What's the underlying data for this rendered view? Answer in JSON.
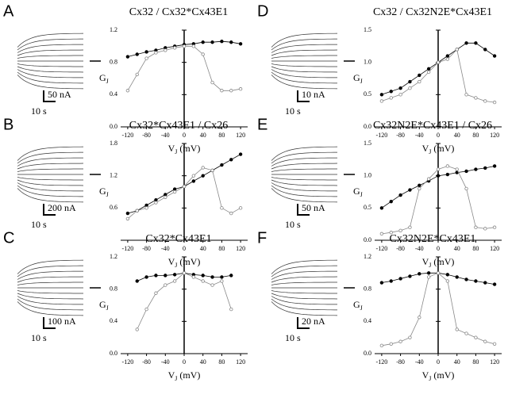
{
  "chart_data": [
    {
      "panel": "A",
      "title": "Cx32 / Cx32*Cx43E1",
      "type": "line",
      "current_scale": "50 nA",
      "time_scale": "10 s",
      "y_label": "G",
      "y_label_sub": "J",
      "x_label": "V",
      "x_label_sub": "J",
      "x_label_unit": " (mV)",
      "xlim": [
        -135,
        135
      ],
      "ylim": [
        0,
        1.2
      ],
      "xticks": [
        -120,
        -80,
        -40,
        0,
        40,
        80,
        120
      ],
      "yticks": [
        {
          "value": 0,
          "label": "0.0"
        },
        0.4,
        0.8,
        1.2
      ],
      "x": [
        -120,
        -100,
        -80,
        -60,
        -40,
        -20,
        0,
        20,
        40,
        60,
        80,
        100,
        120
      ],
      "series": [
        {
          "color": "#000000",
          "marker": "filled",
          "values": [
            0.87,
            0.9,
            0.93,
            0.95,
            0.98,
            1.0,
            1.02,
            1.03,
            1.05,
            1.05,
            1.06,
            1.05,
            1.03
          ]
        },
        {
          "color": "#888888",
          "marker": "open",
          "values": [
            0.45,
            0.65,
            0.85,
            0.92,
            0.95,
            0.98,
            1.0,
            1.0,
            0.9,
            0.55,
            0.45,
            0.45,
            0.47
          ]
        }
      ]
    },
    {
      "panel": "B",
      "title": "Cx32*Cx43E1 / Cx26",
      "type": "line",
      "current_scale": "200 nA",
      "time_scale": "10 s",
      "y_label": "G",
      "y_label_sub": "J",
      "x_label": "V",
      "x_label_sub": "J",
      "x_label_unit": " (mV)",
      "xlim": [
        -135,
        135
      ],
      "ylim": [
        0,
        1.8
      ],
      "xticks": [
        -120,
        -80,
        -40,
        0,
        40,
        80,
        120
      ],
      "yticks": [
        0.6,
        1.2,
        1.8
      ],
      "x": [
        -120,
        -100,
        -80,
        -60,
        -40,
        -20,
        0,
        20,
        40,
        60,
        80,
        100,
        120
      ],
      "series": [
        {
          "color": "#000000",
          "marker": "filled",
          "values": [
            0.5,
            0.55,
            0.65,
            0.75,
            0.85,
            0.95,
            1.0,
            1.1,
            1.2,
            1.3,
            1.4,
            1.5,
            1.6
          ]
        },
        {
          "color": "#888888",
          "marker": "open",
          "values": [
            0.4,
            0.55,
            0.6,
            0.7,
            0.8,
            0.9,
            1.0,
            1.2,
            1.35,
            1.3,
            0.6,
            0.5,
            0.6
          ]
        }
      ]
    },
    {
      "panel": "C",
      "title": "Cx32*Cx43E1",
      "type": "line",
      "current_scale": "100 nA",
      "time_scale": "10 s",
      "y_label": "G",
      "y_label_sub": "J",
      "x_label": "V",
      "x_label_sub": "J",
      "x_label_unit": " (mV)",
      "xlim": [
        -135,
        135
      ],
      "ylim": [
        0,
        1.2
      ],
      "xticks": [
        -120,
        -80,
        -40,
        0,
        40,
        80,
        120
      ],
      "yticks": [
        {
          "value": 0,
          "label": "0.0"
        },
        0.4,
        0.8,
        1.2
      ],
      "x": [
        -100,
        -80,
        -60,
        -40,
        -20,
        0,
        20,
        40,
        60,
        80,
        100
      ],
      "series": [
        {
          "color": "#000000",
          "marker": "filled",
          "values": [
            0.9,
            0.95,
            0.97,
            0.97,
            0.98,
            1.0,
            0.98,
            0.97,
            0.95,
            0.95,
            0.97
          ]
        },
        {
          "color": "#888888",
          "marker": "open",
          "values": [
            0.3,
            0.55,
            0.75,
            0.85,
            0.9,
            1.0,
            0.95,
            0.9,
            0.85,
            0.9,
            0.55
          ]
        }
      ]
    },
    {
      "panel": "D",
      "title": "Cx32 / Cx32N2E*Cx43E1",
      "type": "line",
      "current_scale": "10 nA",
      "time_scale": "10 s",
      "y_label": "G",
      "y_label_sub": "J",
      "x_label": "V",
      "x_label_sub": "J",
      "x_label_unit": " (mV)",
      "xlim": [
        -135,
        135
      ],
      "ylim": [
        0,
        1.5
      ],
      "xticks": [
        -120,
        -80,
        -40,
        0,
        40,
        80,
        120
      ],
      "yticks": [
        {
          "value": 0,
          "label": "0.0"
        },
        0.5,
        {
          "value": 1,
          "label": "1.0"
        },
        1.5
      ],
      "x": [
        -120,
        -100,
        -80,
        -60,
        -40,
        -20,
        0,
        20,
        40,
        60,
        80,
        100,
        120
      ],
      "series": [
        {
          "color": "#000000",
          "marker": "filled",
          "values": [
            0.5,
            0.55,
            0.6,
            0.7,
            0.8,
            0.9,
            1.0,
            1.1,
            1.2,
            1.3,
            1.3,
            1.2,
            1.1
          ]
        },
        {
          "color": "#888888",
          "marker": "open",
          "values": [
            0.4,
            0.45,
            0.5,
            0.6,
            0.7,
            0.85,
            1.0,
            1.05,
            1.2,
            0.5,
            0.45,
            0.4,
            0.38
          ]
        }
      ]
    },
    {
      "panel": "E",
      "title": "Cx32N2E*Cx43E1 / Cx26",
      "type": "line",
      "current_scale": "50 nA",
      "time_scale": "10 s",
      "y_label": "G",
      "y_label_sub": "J",
      "x_label": "V",
      "x_label_sub": "J",
      "x_label_unit": " (mV)",
      "xlim": [
        -135,
        135
      ],
      "ylim": [
        0,
        1.5
      ],
      "xticks": [
        -120,
        -80,
        -40,
        0,
        40,
        80,
        120
      ],
      "yticks": [
        {
          "value": 0,
          "label": "0.0"
        },
        0.5,
        {
          "value": 1,
          "label": "1.0"
        },
        1.5
      ],
      "x": [
        -120,
        -100,
        -80,
        -60,
        -40,
        -20,
        0,
        20,
        40,
        60,
        80,
        100,
        120
      ],
      "series": [
        {
          "color": "#000000",
          "marker": "filled",
          "values": [
            0.5,
            0.6,
            0.7,
            0.78,
            0.85,
            0.92,
            1.0,
            1.02,
            1.05,
            1.07,
            1.1,
            1.12,
            1.15
          ]
        },
        {
          "color": "#888888",
          "marker": "open",
          "values": [
            0.1,
            0.12,
            0.15,
            0.2,
            0.8,
            0.95,
            1.1,
            1.15,
            1.1,
            0.8,
            0.2,
            0.18,
            0.2
          ]
        }
      ]
    },
    {
      "panel": "F",
      "title": "Cx32N2E*Cx43E1",
      "type": "line",
      "current_scale": "20 nA",
      "time_scale": "10 s",
      "y_label": "G",
      "y_label_sub": "J",
      "x_label": "V",
      "x_label_sub": "J",
      "x_label_unit": " (mV)",
      "xlim": [
        -135,
        135
      ],
      "ylim": [
        0,
        1.2
      ],
      "xticks": [
        -120,
        -80,
        -40,
        0,
        40,
        80,
        120
      ],
      "yticks": [
        {
          "value": 0,
          "label": "0.0"
        },
        0.4,
        0.8,
        1.2
      ],
      "x": [
        -120,
        -100,
        -80,
        -60,
        -40,
        -20,
        0,
        20,
        40,
        60,
        80,
        100,
        120
      ],
      "series": [
        {
          "color": "#000000",
          "marker": "filled",
          "values": [
            0.88,
            0.9,
            0.93,
            0.96,
            0.99,
            1.0,
            1.0,
            0.98,
            0.95,
            0.92,
            0.9,
            0.88,
            0.86
          ]
        },
        {
          "color": "#888888",
          "marker": "open",
          "values": [
            0.1,
            0.12,
            0.15,
            0.2,
            0.45,
            0.95,
            1.0,
            0.9,
            0.3,
            0.25,
            0.2,
            0.15,
            0.12
          ]
        }
      ]
    }
  ]
}
